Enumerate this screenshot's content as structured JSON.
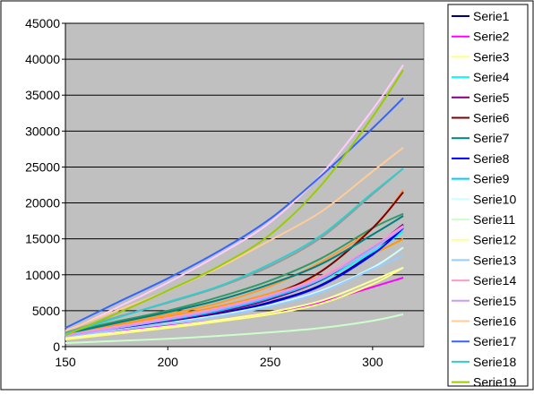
{
  "chart_data": {
    "type": "line",
    "title": "",
    "xlabel": "",
    "ylabel": "",
    "xlim": [
      150,
      325
    ],
    "ylim": [
      0,
      45000
    ],
    "x_ticks": [
      150,
      200,
      250,
      300
    ],
    "y_ticks": [
      0,
      5000,
      10000,
      15000,
      20000,
      25000,
      30000,
      35000,
      40000,
      45000
    ],
    "grid": "horizontal",
    "legend_position": "right",
    "plot_background": "#c0c0c0",
    "x": [
      150,
      175,
      200,
      225,
      250,
      275,
      300,
      315
    ],
    "series": [
      {
        "name": "Serie1",
        "color": "#000080",
        "values": [
          1500,
          2500,
          3500,
          4600,
          6200,
          8600,
          13000,
          16800
        ]
      },
      {
        "name": "Serie2",
        "color": "#ff00ff",
        "values": [
          1300,
          2100,
          2900,
          3700,
          4800,
          6200,
          8300,
          9600
        ]
      },
      {
        "name": "Serie3",
        "color": "#ffff80",
        "values": [
          1000,
          1800,
          2600,
          3500,
          4500,
          6000,
          8700,
          11000
        ]
      },
      {
        "name": "Serie4",
        "color": "#00ffff",
        "values": [
          1700,
          2700,
          3800,
          5000,
          6800,
          9200,
          13200,
          16000
        ]
      },
      {
        "name": "Serie5",
        "color": "#800080",
        "values": [
          1600,
          2600,
          3600,
          4800,
          6600,
          9300,
          13800,
          17000
        ]
      },
      {
        "name": "Serie6",
        "color": "#800000",
        "values": [
          1500,
          2600,
          3700,
          5100,
          7100,
          10500,
          16500,
          21500
        ]
      },
      {
        "name": "Serie7",
        "color": "#008080",
        "values": [
          1800,
          3300,
          4800,
          6500,
          8700,
          11500,
          15600,
          18200
        ]
      },
      {
        "name": "Serie8",
        "color": "#0000ff",
        "values": [
          1400,
          2400,
          3400,
          4500,
          6100,
          8500,
          12800,
          16500
        ]
      },
      {
        "name": "Serie9",
        "color": "#00ccff",
        "values": [
          1500,
          2600,
          3700,
          5000,
          6800,
          9400,
          13800,
          16800
        ]
      },
      {
        "name": "Serie10",
        "color": "#ccffff",
        "values": [
          1300,
          2300,
          3300,
          4400,
          5800,
          7800,
          11000,
          13800
        ]
      },
      {
        "name": "Serie11",
        "color": "#ccffcc",
        "values": [
          500,
          800,
          1100,
          1500,
          2000,
          2600,
          3600,
          4500
        ]
      },
      {
        "name": "Serie12",
        "color": "#ffff99",
        "values": [
          1200,
          2000,
          2800,
          3700,
          4800,
          6400,
          9200,
          11000
        ]
      },
      {
        "name": "Serie13",
        "color": "#99ccff",
        "values": [
          1400,
          2300,
          3200,
          4200,
          5600,
          7600,
          10800,
          12700
        ]
      },
      {
        "name": "Serie14",
        "color": "#ff99cc",
        "values": [
          1600,
          2800,
          4000,
          5400,
          7200,
          9800,
          14000,
          16800
        ]
      },
      {
        "name": "Serie15",
        "color": "#cc99ff",
        "values": [
          1500,
          2600,
          3800,
          5200,
          7000,
          9500,
          13600,
          16600
        ]
      },
      {
        "name": "Serie16",
        "color": "#ffcc99",
        "values": [
          2200,
          5000,
          7800,
          11000,
          14800,
          18800,
          24400,
          27700
        ]
      },
      {
        "name": "Serie17",
        "color": "#3366ff",
        "values": [
          2600,
          6100,
          9500,
          13300,
          17800,
          23800,
          30400,
          34600
        ]
      },
      {
        "name": "Serie18",
        "color": "#33cccc",
        "values": [
          1800,
          4000,
          6200,
          8400,
          11500,
          15500,
          21400,
          24800
        ]
      },
      {
        "name": "Serie19",
        "color": "#99cc00",
        "values": [
          1600,
          4600,
          7800,
          11200,
          15600,
          22500,
          32000,
          38500
        ]
      }
    ],
    "extra_series": [
      {
        "color": "#ffccff",
        "values": [
          2000,
          5400,
          8900,
          12800,
          17300,
          24000,
          33000,
          39200
        ]
      },
      {
        "color": "#999999",
        "values": [
          2000,
          4100,
          6100,
          8300,
          11200,
          15200,
          21200,
          24800
        ]
      },
      {
        "color": "#ff9933",
        "values": [
          1700,
          3100,
          4500,
          6100,
          8400,
          11800,
          16500,
          21800
        ]
      },
      {
        "color": "#339966",
        "values": [
          1900,
          3500,
          5000,
          6900,
          9200,
          12300,
          16500,
          18500
        ]
      },
      {
        "color": "#ff9900",
        "values": [
          1600,
          2900,
          4200,
          5600,
          7400,
          9800,
          12900,
          15000
        ]
      }
    ]
  }
}
